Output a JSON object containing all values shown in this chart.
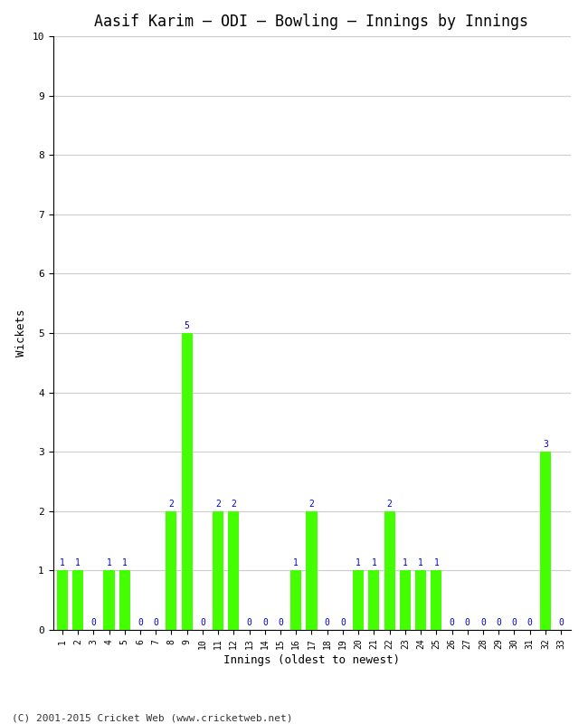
{
  "title": "Aasif Karim – ODI – Bowling – Innings by Innings",
  "xlabel": "Innings (oldest to newest)",
  "ylabel": "Wickets",
  "footer": "(C) 2001-2015 Cricket Web (www.cricketweb.net)",
  "ylim": [
    0,
    10
  ],
  "yticks": [
    0,
    1,
    2,
    3,
    4,
    5,
    6,
    7,
    8,
    9,
    10
  ],
  "innings": [
    1,
    2,
    3,
    4,
    5,
    6,
    7,
    8,
    9,
    10,
    11,
    12,
    13,
    14,
    15,
    16,
    17,
    18,
    19,
    20,
    21,
    22,
    23,
    24,
    25,
    26,
    27,
    28,
    29,
    30,
    31,
    32,
    33
  ],
  "wickets": [
    1,
    1,
    0,
    1,
    1,
    0,
    0,
    2,
    5,
    0,
    2,
    2,
    0,
    0,
    0,
    1,
    2,
    0,
    0,
    1,
    1,
    2,
    1,
    1,
    1,
    0,
    0,
    0,
    0,
    0,
    0,
    3,
    0
  ],
  "bar_color": "#44ff00",
  "label_color": "#0000cc",
  "bg_color": "#ffffff",
  "grid_color": "#cccccc",
  "title_fontsize": 12,
  "axis_label_fontsize": 9,
  "bar_label_fontsize": 7,
  "tick_fontsize": 7,
  "footer_fontsize": 8
}
